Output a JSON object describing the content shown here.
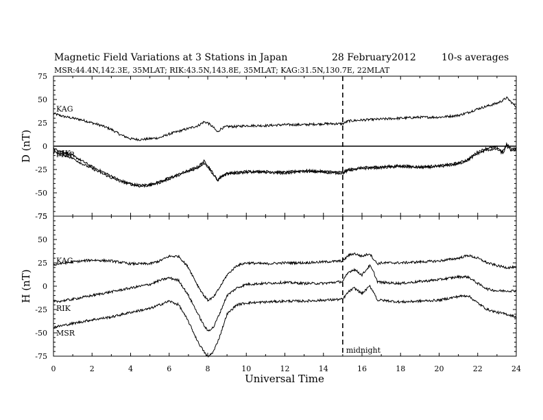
{
  "header": {
    "title": "Magnetic Field Variations at 3 Stations in Japan",
    "date": "28 February2012",
    "averaging": "10-s averages",
    "stations": "MSR:44.4N,142.3E, 35MLAT;  RIK:43.5N,143.8E, 35MLAT;  KAG:31.5N,130.7E, 22MLAT"
  },
  "chart_data": [
    {
      "type": "line",
      "panel": "D",
      "ylabel": "D (nT)",
      "ylim": [
        -75,
        75
      ],
      "yticks": [
        75,
        50,
        25,
        0,
        -25,
        -50,
        -75
      ],
      "xlim": [
        0,
        24
      ],
      "zero_line": true,
      "series": [
        {
          "name": "KAG",
          "x": [
            0,
            0.5,
            1,
            1.5,
            2,
            2.5,
            3,
            3.5,
            4,
            4.5,
            5,
            5.5,
            6,
            6.5,
            7,
            7.5,
            7.8,
            8,
            8.3,
            8.5,
            8.7,
            9,
            9.5,
            10,
            11,
            12,
            13,
            14,
            15,
            15.3,
            16,
            17,
            18,
            19,
            20,
            21,
            21.5,
            22,
            22.5,
            23,
            23.3,
            23.5,
            23.7,
            24
          ],
          "y": [
            35,
            32,
            30,
            28,
            25,
            22,
            18,
            12,
            8,
            7,
            8,
            9,
            13,
            16,
            19,
            22,
            26,
            25,
            20,
            15,
            19,
            21,
            21,
            22,
            22,
            23,
            23,
            24,
            24,
            27,
            28,
            29,
            30,
            31,
            31,
            33,
            36,
            40,
            43,
            46,
            49,
            52,
            48,
            42
          ]
        },
        {
          "name": "RIK",
          "x": [
            0,
            0.5,
            1,
            1.5,
            2,
            2.5,
            3,
            3.5,
            4,
            4.5,
            5,
            5.5,
            6,
            6.5,
            7,
            7.5,
            7.8,
            8,
            8.3,
            8.5,
            8.7,
            9,
            9.5,
            10,
            11,
            12,
            13,
            14,
            15,
            15.3,
            16,
            17,
            18,
            19,
            20,
            21,
            21.5,
            22,
            22.5,
            23,
            23.3,
            23.5,
            23.7,
            24
          ],
          "y": [
            -3,
            -6,
            -10,
            -16,
            -22,
            -27,
            -32,
            -37,
            -40,
            -42,
            -41,
            -38,
            -34,
            -30,
            -26,
            -22,
            -16,
            -20,
            -30,
            -36,
            -32,
            -29,
            -28,
            -27,
            -27,
            -28,
            -26,
            -27,
            -28,
            -25,
            -23,
            -22,
            -21,
            -22,
            -21,
            -18,
            -14,
            -6,
            -2,
            -1,
            -6,
            2,
            -2,
            -3
          ]
        },
        {
          "name": "MSR",
          "x": [
            0,
            0.5,
            1,
            1.5,
            2,
            2.5,
            3,
            3.5,
            4,
            4.5,
            5,
            5.5,
            6,
            6.5,
            7,
            7.5,
            7.8,
            8,
            8.3,
            8.5,
            8.7,
            9,
            9.5,
            10,
            11,
            12,
            13,
            14,
            15,
            15.3,
            16,
            17,
            18,
            19,
            20,
            21,
            21.5,
            22,
            22.5,
            23,
            23.3,
            23.5,
            23.7,
            24
          ],
          "y": [
            -6,
            -9,
            -13,
            -19,
            -24,
            -29,
            -34,
            -38,
            -41,
            -43,
            -42,
            -39,
            -35,
            -31,
            -27,
            -23,
            -18,
            -22,
            -31,
            -37,
            -33,
            -30,
            -29,
            -28,
            -28,
            -29,
            -27,
            -28,
            -29,
            -26,
            -24,
            -23,
            -22,
            -23,
            -22,
            -19,
            -15,
            -8,
            -4,
            -3,
            -8,
            0,
            -4,
            -5
          ]
        }
      ]
    },
    {
      "type": "line",
      "panel": "H",
      "ylabel": "H (nT)",
      "ylim": [
        -75,
        75
      ],
      "yticks": [
        75,
        50,
        25,
        0,
        -25,
        -50,
        -75
      ],
      "xlim": [
        0,
        24
      ],
      "xticks": [
        0,
        2,
        4,
        6,
        8,
        10,
        12,
        14,
        16,
        18,
        20,
        22,
        24
      ],
      "xlabel": "Universal Time",
      "series": [
        {
          "name": "KAG",
          "x": [
            0,
            1,
            2,
            3,
            4,
            5,
            5.5,
            6,
            6.5,
            7,
            7.5,
            7.8,
            8,
            8.3,
            8.6,
            9,
            9.5,
            10,
            11,
            12,
            13,
            14,
            15,
            15.3,
            15.6,
            16,
            16.4,
            16.6,
            16.8,
            17,
            18,
            19,
            20,
            21,
            21.5,
            22,
            22.5,
            23,
            23.5,
            24
          ],
          "y": [
            23,
            26,
            28,
            27,
            24,
            24,
            27,
            32,
            32,
            20,
            0,
            -10,
            -15,
            -12,
            -2,
            12,
            22,
            25,
            24,
            25,
            25,
            26,
            27,
            33,
            35,
            32,
            35,
            29,
            24,
            25,
            25,
            26,
            27,
            30,
            33,
            30,
            25,
            22,
            20,
            20
          ]
        },
        {
          "name": "RIK",
          "x": [
            0,
            1,
            2,
            3,
            4,
            5,
            5.5,
            6,
            6.5,
            7,
            7.5,
            7.8,
            8,
            8.3,
            8.6,
            9,
            9.5,
            10,
            11,
            12,
            13,
            14,
            15,
            15.3,
            15.6,
            16,
            16.4,
            16.6,
            16.8,
            17,
            18,
            19,
            20,
            21,
            21.5,
            22,
            22.5,
            23,
            23.5,
            24
          ],
          "y": [
            -17,
            -14,
            -10,
            -6,
            -2,
            2,
            6,
            9,
            6,
            -10,
            -30,
            -42,
            -48,
            -44,
            -30,
            -10,
            -2,
            2,
            3,
            4,
            3,
            3,
            5,
            15,
            18,
            12,
            22,
            15,
            5,
            4,
            3,
            5,
            7,
            10,
            10,
            3,
            -3,
            -5,
            -5,
            -5
          ]
        },
        {
          "name": "MSR",
          "x": [
            0,
            1,
            2,
            3,
            4,
            5,
            5.5,
            6,
            6.5,
            7,
            7.5,
            7.8,
            8,
            8.3,
            8.6,
            9,
            9.5,
            10,
            11,
            12,
            13,
            14,
            15,
            15.3,
            15.6,
            16,
            16.4,
            16.6,
            16.8,
            17,
            18,
            19,
            20,
            21,
            21.5,
            22,
            22.5,
            23,
            23.5,
            24
          ],
          "y": [
            -44,
            -40,
            -36,
            -33,
            -28,
            -24,
            -20,
            -16,
            -20,
            -38,
            -60,
            -70,
            -76,
            -70,
            -55,
            -30,
            -20,
            -18,
            -17,
            -16,
            -16,
            -15,
            -14,
            -6,
            -2,
            -8,
            0,
            -6,
            -15,
            -15,
            -17,
            -16,
            -15,
            -11,
            -10,
            -18,
            -25,
            -28,
            -30,
            -33
          ]
        }
      ]
    }
  ],
  "marker": {
    "x": 15,
    "label": "midnight"
  }
}
